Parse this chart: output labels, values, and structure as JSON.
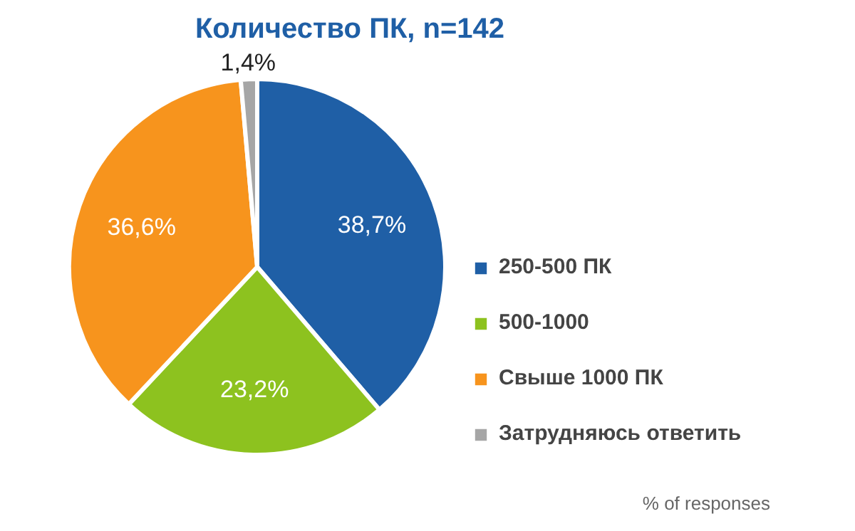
{
  "chart_data": {
    "type": "pie",
    "title": "Количество ПК, n=142",
    "categories": [
      "250-500 ПК",
      "500-1000",
      "Свыше 1000 ПК",
      "Затрудняюсь ответить"
    ],
    "values": [
      38.7,
      23.2,
      36.6,
      1.4
    ],
    "colors": [
      "#1f5fa6",
      "#8dc21f",
      "#f7941d",
      "#a6a6a6"
    ],
    "value_labels": [
      "38,7%",
      "23,2%",
      "36,6%",
      "1,4%"
    ],
    "legend": "right",
    "annotations": [
      "% of responses"
    ]
  }
}
